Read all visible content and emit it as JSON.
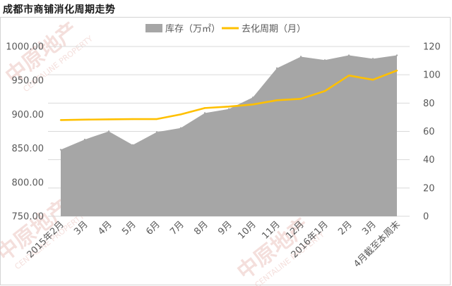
{
  "page": {
    "title": "成都市商铺消化周期走势"
  },
  "colors": {
    "area_fill": "#a6a6a6",
    "line_stroke": "#ffc000",
    "axis_text": "#595959",
    "grid": "#d9d9d9",
    "watermark": "#e8b9b3"
  },
  "watermark": {
    "brand_cn": "中原地产",
    "brand_en": "CENTALINE PROPERTY"
  },
  "chart_data": {
    "type": "area+line",
    "title": "成都市商铺消化周期走势",
    "categories": [
      "2015年2月",
      "3月",
      "4月",
      "5月",
      "6月",
      "7月",
      "8月",
      "9月",
      "10月",
      "11月",
      "12月",
      "2016年1月",
      "2月",
      "3月",
      "4月截至本周末"
    ],
    "series": [
      {
        "name": "库存（万㎡）",
        "type": "area",
        "axis": "left",
        "values": [
          848,
          863,
          875,
          855,
          874,
          880,
          902,
          908,
          925,
          968,
          985,
          980,
          987,
          982,
          987
        ]
      },
      {
        "name": "去化周期（月）",
        "type": "line",
        "axis": "right",
        "values": [
          68,
          68.3,
          68.5,
          68.7,
          68.7,
          72,
          76.5,
          77.5,
          79,
          82,
          83,
          88.5,
          99.5,
          96.5,
          103
        ]
      }
    ],
    "y_left": {
      "min": 750,
      "max": 1000,
      "ticks": [
        "750.00",
        "800.00",
        "850.00",
        "900.00",
        "950.00",
        "1000.00"
      ]
    },
    "y_right": {
      "min": 0,
      "max": 120,
      "ticks": [
        "0",
        "20",
        "40",
        "60",
        "80",
        "100",
        "120"
      ]
    },
    "grid": true,
    "legend_position": "top-center"
  }
}
